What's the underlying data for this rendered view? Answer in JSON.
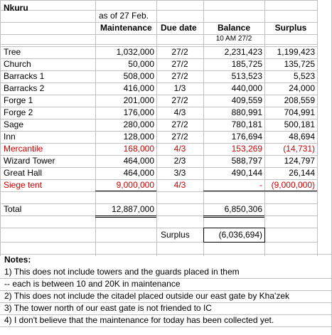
{
  "header": {
    "title": "Nkuru",
    "as_of": "as of 27 Feb.",
    "col_maintenance": "Maintenance",
    "col_due": "Due date",
    "col_balance": "Balance",
    "col_surplus": "Surplus",
    "balance_time": "10 AM 27/2"
  },
  "rows": [
    {
      "name": "Tree",
      "maint": "1,032,000",
      "due": "27/2",
      "balance": "2,231,423",
      "surplus": "1,199,423",
      "red": false
    },
    {
      "name": "Church",
      "maint": "50,000",
      "due": "27/2",
      "balance": "185,725",
      "surplus": "135,725",
      "red": false
    },
    {
      "name": "Barracks 1",
      "maint": "508,000",
      "due": "27/2",
      "balance": "513,523",
      "surplus": "5,523",
      "red": false
    },
    {
      "name": "Barracks 2",
      "maint": "416,000",
      "due": "1/3",
      "balance": "440,000",
      "surplus": "24,000",
      "red": false
    },
    {
      "name": "Forge 1",
      "maint": "201,000",
      "due": "27/2",
      "balance": "409,559",
      "surplus": "208,559",
      "red": false
    },
    {
      "name": "Forge 2",
      "maint": "176,000",
      "due": "4/3",
      "balance": "880,991",
      "surplus": "704,991",
      "red": false
    },
    {
      "name": "Sage",
      "maint": "280,000",
      "due": "27/2",
      "balance": "780,181",
      "surplus": "500,181",
      "red": false
    },
    {
      "name": "Inn",
      "maint": "128,000",
      "due": "27/2",
      "balance": "176,694",
      "surplus": "48,694",
      "red": false
    },
    {
      "name": "Mercantile",
      "maint": "168,000",
      "due": "4/3",
      "balance": "153,269",
      "surplus": "(14,731)",
      "red": true
    },
    {
      "name": "Wizard Tower",
      "maint": "464,000",
      "due": "2/3",
      "balance": "588,797",
      "surplus": "124,797",
      "red": false
    },
    {
      "name": "Great  Hall",
      "maint": "464,000",
      "due": "3/3",
      "balance": "490,144",
      "surplus": "26,144",
      "red": false
    },
    {
      "name": "Siege tent",
      "maint": "9,000,000",
      "due": "4/3",
      "balance": "-",
      "surplus": "(9,000,000)",
      "red": true
    }
  ],
  "total": {
    "label": "Total",
    "maint": "12,887,000",
    "balance": "6,850,306"
  },
  "surplus_summary": {
    "label": "Surplus",
    "value": "(6,036,694)"
  },
  "notes": {
    "heading": "Notes:",
    "lines": [
      "1) This does not include towers and the guards placed in them",
      "-- each is between 10 and 20K in maintenance",
      "2) This does not include the citadel placed outside our east gate by Kha'zek",
      "3) The tower north of our east gate is not friended to IC",
      "4) I don't believe that the maintenance for today has been collected yet."
    ]
  },
  "colors": {
    "negative": "#cc0000",
    "gridline": "#c0c0c0"
  }
}
